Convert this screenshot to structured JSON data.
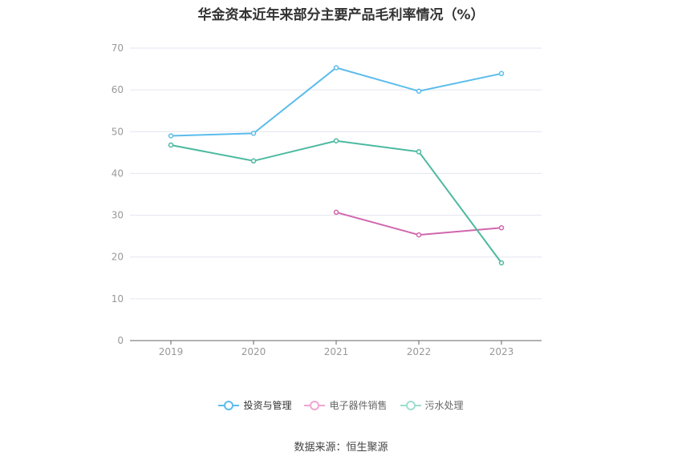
{
  "chart_data": {
    "type": "line",
    "title": "华金资本近年来部分主要产品毛利率情况（%）",
    "categories": [
      "2019",
      "2020",
      "2021",
      "2022",
      "2023"
    ],
    "ylim": [
      0,
      70
    ],
    "yticks": [
      0,
      10,
      20,
      30,
      40,
      50,
      60,
      70
    ],
    "grid": true,
    "legend_position": "bottom",
    "series": [
      {
        "name": "投资与管理",
        "color": "#5bbcec",
        "values": [
          49.0,
          49.6,
          65.3,
          59.7,
          63.9
        ]
      },
      {
        "name": "电子器件销售",
        "color": "#d066ae",
        "values": [
          null,
          null,
          30.7,
          25.3,
          27.0
        ]
      },
      {
        "name": "污水处理",
        "color": "#4cb9a0",
        "values": [
          46.8,
          43.0,
          47.8,
          45.2,
          18.6
        ]
      }
    ]
  },
  "legend_colors": [
    "#5bbcec",
    "#f0a6d2",
    "#9fdccf"
  ],
  "source": "数据来源：恒生聚源"
}
